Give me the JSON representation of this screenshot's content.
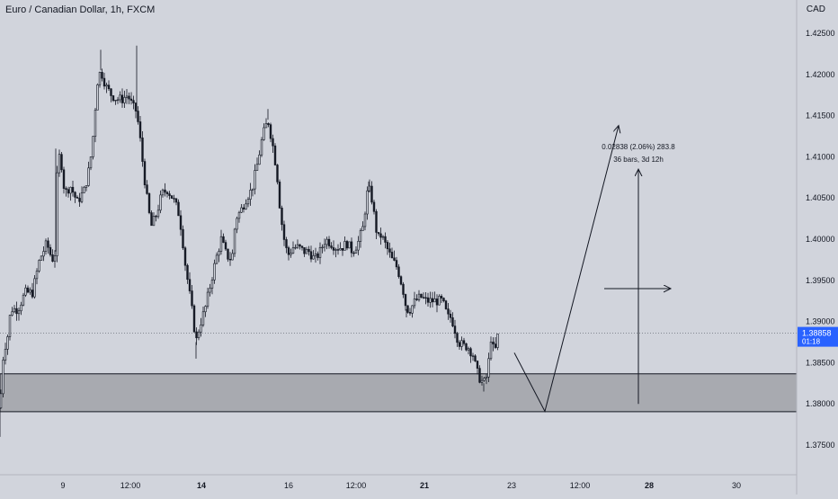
{
  "header": {
    "symbol_title": "Euro / Canadian Dollar, 1h, FXCM",
    "currency": "CAD"
  },
  "price_scale": {
    "ticks": [
      "1.42500",
      "1.42000",
      "1.41500",
      "1.41000",
      "1.40500",
      "1.40000",
      "1.39500",
      "1.39000",
      "1.38500",
      "1.38000",
      "1.37500"
    ],
    "tick_values": [
      1.425,
      1.42,
      1.415,
      1.41,
      1.405,
      1.4,
      1.395,
      1.39,
      1.385,
      1.38,
      1.375
    ],
    "last_price_label": "1.38858",
    "countdown_label": "01:18"
  },
  "time_scale": {
    "ticks": [
      "9",
      "12:00",
      "14",
      "16",
      "12:00",
      "21",
      "23",
      "12:00",
      "28",
      "30"
    ],
    "bold_ticks": [
      "14",
      "21",
      "28"
    ]
  },
  "measure": {
    "line1": "0.02838 (2.06%) 283.8",
    "line2": "36 bars, 3d 12h"
  },
  "colors": {
    "background": "#d1d4dc",
    "candle": "#131722",
    "zone_fill": "#a8aab0",
    "price_label_bg": "#2962ff",
    "price_label_text": "#ffffff"
  },
  "chart_data": {
    "type": "candlestick",
    "title": "Euro / Canadian Dollar, 1h, FXCM",
    "ylim": [
      1.372,
      1.4285
    ],
    "last_price": 1.38858,
    "zone": {
      "top": 1.38365,
      "bottom": 1.37905
    },
    "price_path": [
      [
        0,
        1.3795
      ],
      [
        4,
        1.3865
      ],
      [
        8,
        1.3878
      ],
      [
        12,
        1.3915
      ],
      [
        20,
        1.3915
      ],
      [
        28,
        1.3935
      ],
      [
        36,
        1.3935
      ],
      [
        44,
        1.3975
      ],
      [
        52,
        1.3995
      ],
      [
        58,
        1.3975
      ],
      [
        62,
        1.3985
      ],
      [
        64,
        1.4105
      ],
      [
        68,
        1.4095
      ],
      [
        72,
        1.4055
      ],
      [
        78,
        1.4065
      ],
      [
        86,
        1.4045
      ],
      [
        94,
        1.406
      ],
      [
        100,
        1.409
      ],
      [
        104,
        1.413
      ],
      [
        108,
        1.419
      ],
      [
        112,
        1.4205
      ],
      [
        118,
        1.4185
      ],
      [
        124,
        1.4175
      ],
      [
        130,
        1.417
      ],
      [
        136,
        1.417
      ],
      [
        142,
        1.4175
      ],
      [
        148,
        1.416
      ],
      [
        152,
        1.4155
      ],
      [
        156,
        1.412
      ],
      [
        160,
        1.408
      ],
      [
        164,
        1.4045
      ],
      [
        168,
        1.4015
      ],
      [
        174,
        1.403
      ],
      [
        180,
        1.4055
      ],
      [
        186,
        1.406
      ],
      [
        192,
        1.405
      ],
      [
        198,
        1.4035
      ],
      [
        202,
        1.401
      ],
      [
        206,
        1.397
      ],
      [
        210,
        1.394
      ],
      [
        214,
        1.391
      ],
      [
        218,
        1.3875
      ],
      [
        222,
        1.3895
      ],
      [
        228,
        1.3915
      ],
      [
        234,
        1.3945
      ],
      [
        240,
        1.3975
      ],
      [
        246,
        1.4
      ],
      [
        252,
        1.398
      ],
      [
        258,
        1.3975
      ],
      [
        262,
        1.4025
      ],
      [
        268,
        1.4035
      ],
      [
        274,
        1.405
      ],
      [
        280,
        1.406
      ],
      [
        286,
        1.409
      ],
      [
        292,
        1.4125
      ],
      [
        298,
        1.4145
      ],
      [
        304,
        1.411
      ],
      [
        308,
        1.408
      ],
      [
        312,
        1.403
      ],
      [
        316,
        1.4
      ],
      [
        320,
        1.398
      ],
      [
        326,
        1.399
      ],
      [
        332,
        1.399
      ],
      [
        338,
        1.3985
      ],
      [
        344,
        1.3985
      ],
      [
        350,
        1.3975
      ],
      [
        356,
        1.3985
      ],
      [
        362,
        1.4
      ],
      [
        368,
        1.3995
      ],
      [
        374,
        1.399
      ],
      [
        380,
        1.399
      ],
      [
        386,
        1.3995
      ],
      [
        392,
        1.3985
      ],
      [
        398,
        1.3995
      ],
      [
        404,
        1.4015
      ],
      [
        408,
        1.4055
      ],
      [
        412,
        1.406
      ],
      [
        416,
        1.403
      ],
      [
        420,
        1.4
      ],
      [
        424,
        1.4005
      ],
      [
        430,
        1.399
      ],
      [
        436,
        1.3975
      ],
      [
        442,
        1.3965
      ],
      [
        448,
        1.394
      ],
      [
        452,
        1.3915
      ],
      [
        456,
        1.3915
      ],
      [
        462,
        1.3925
      ],
      [
        468,
        1.393
      ],
      [
        474,
        1.3925
      ],
      [
        480,
        1.3925
      ],
      [
        486,
        1.3925
      ],
      [
        492,
        1.3925
      ],
      [
        498,
        1.3905
      ],
      [
        502,
        1.3905
      ],
      [
        506,
        1.389
      ],
      [
        510,
        1.3875
      ],
      [
        516,
        1.387
      ],
      [
        520,
        1.387
      ],
      [
        526,
        1.386
      ],
      [
        530,
        1.384
      ],
      [
        534,
        1.383
      ],
      [
        538,
        1.3825
      ],
      [
        542,
        1.3835
      ],
      [
        546,
        1.388
      ],
      [
        550,
        1.386
      ],
      [
        554,
        1.3885
      ]
    ],
    "wick_highs": [
      [
        112,
        1.423
      ],
      [
        152,
        1.4235
      ],
      [
        298,
        1.4158
      ],
      [
        410,
        1.407
      ],
      [
        62,
        1.411
      ]
    ],
    "wick_lows": [
      [
        0,
        1.376
      ],
      [
        218,
        1.3855
      ],
      [
        538,
        1.3815
      ],
      [
        452,
        1.3905
      ]
    ],
    "projection": {
      "path": [
        [
          572,
          1.3862
        ],
        [
          606,
          1.3791
        ],
        [
          688,
          1.4138
        ]
      ],
      "measure_arrow": {
        "x": 710,
        "from": 1.38,
        "to": 1.4085
      },
      "horizontal_arrow": {
        "y": 1.394,
        "from_x": 672,
        "to_x": 746
      }
    }
  }
}
